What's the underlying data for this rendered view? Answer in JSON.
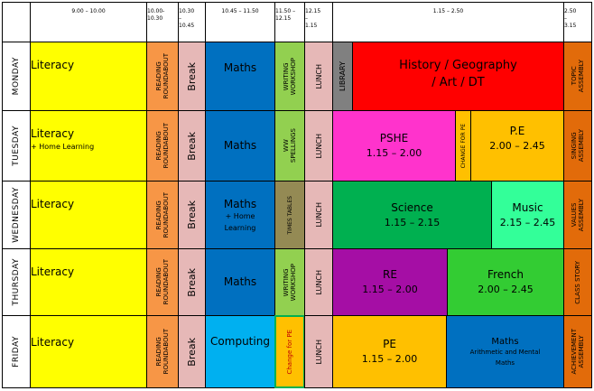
{
  "headers": {
    "t1": "9.00 – 10.00",
    "t2a": "10.00-",
    "t2b": "10.30",
    "t3a": "10.30",
    "t3b": "–",
    "t3c": "10.45",
    "t4": "10.45 – 11.50",
    "t5a": "11.50 –",
    "t5b": "12.15",
    "t6a": "12.15",
    "t6b": "–",
    "t6c": "1.15",
    "t7": "1.15 – 2.50",
    "t8a": "2.50",
    "t8b": "–",
    "t8c": "3.15"
  },
  "days": [
    "MONDAY",
    "TUESDAY",
    "WEDNESDAY",
    "THURSDAY",
    "FRIDAY"
  ],
  "common": {
    "literacy": "Literacy",
    "home_learning": "+ Home Learning",
    "reading_1": "READING",
    "reading_2": "ROUNDABOUT",
    "break": "Break",
    "lunch": "LUNCH",
    "maths": "Maths"
  },
  "monday": {
    "p4_1": "WRITING",
    "p4_2": "WORKSHOP",
    "library": "LIBRARY",
    "hist_1": "History / Geography",
    "hist_2": "/ Art / DT",
    "end_1": "TOPIC",
    "end_2": "ASSEMBLY"
  },
  "tuesday": {
    "p4_1": "WW",
    "p4_2": "SPELLINGS",
    "pshe": "PSHE",
    "pshe_time": "1.15 – 2.00",
    "change": "CHANGE FOR PE",
    "pe": "P.E",
    "pe_time": "2.00 – 2.45",
    "end_1": "SINGING",
    "end_2": "ASSEMBLY"
  },
  "wednesday": {
    "maths_sub_1": "+ Home",
    "maths_sub_2": "Learning",
    "p4": "TIMES TABLES",
    "science": "Science",
    "science_time": "1.15 – 2.15",
    "music": "Music",
    "music_time": "2.15 – 2.45",
    "end_1": "VALUES",
    "end_2": "ASSEMBLY"
  },
  "thursday": {
    "p4_1": "WRITING",
    "p4_2": "WORKSHOP",
    "re": "RE",
    "re_time": "1.15 – 2.00",
    "french": "French",
    "french_time": "2.00 – 2.45",
    "end": "CLASS STORY"
  },
  "friday": {
    "computing": "Computing",
    "p4": "Change for PE",
    "pe": "PE",
    "pe_time": "1.15 – 2.00",
    "maths_sub_1": "Arithmetic and Mental",
    "maths_sub_2": "Maths",
    "end_1": "ACHIEVEMENT",
    "end_2": "ASSEMBLY"
  },
  "colors": {
    "day_col": "#ffffff",
    "literacy": "#ffff00",
    "reading": "#f79646",
    "break": "#e6b8b7",
    "maths": "#0070c0",
    "computing": "#00b0f0",
    "writing": "#92d050",
    "lunch": "#e6b8b7",
    "library": "#808080",
    "history": "#ff0000",
    "pshe": "#ff33cc",
    "pe": "#ffc000",
    "science": "#00b050",
    "music": "#33ff99",
    "re": "#a50ea5",
    "french": "#33cc33",
    "assembly": "#e26b0a",
    "times_tables": "#948a54",
    "change_pe": "#ffc000"
  }
}
